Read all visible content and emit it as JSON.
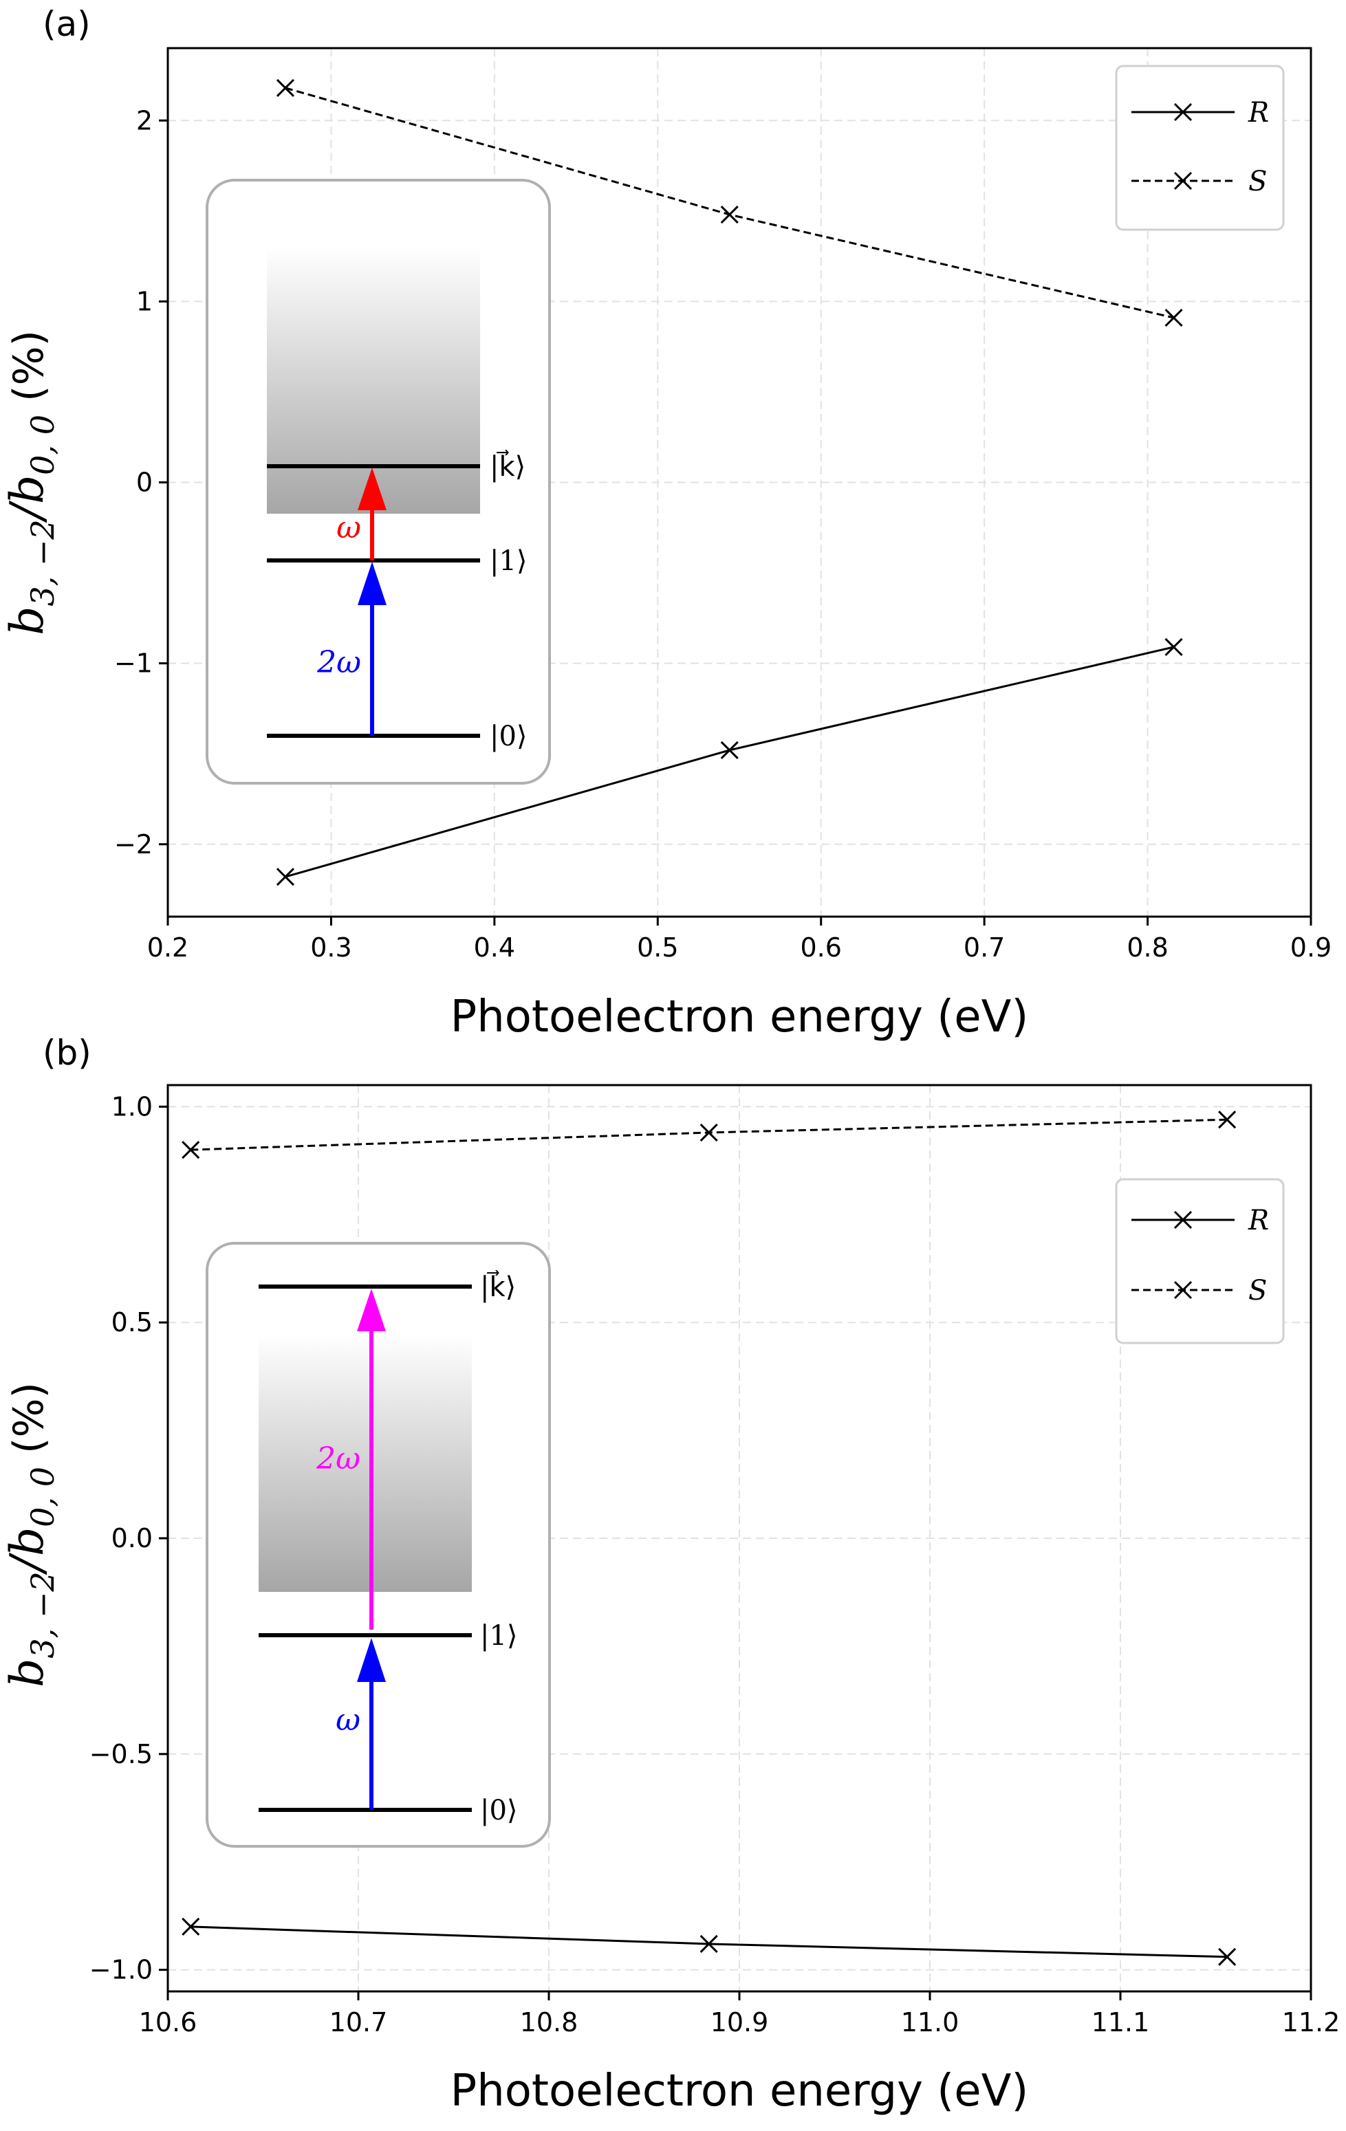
{
  "chart_data": [
    {
      "type": "line",
      "panel_label": "(a)",
      "x": [
        0.272,
        0.544,
        0.816
      ],
      "series": [
        {
          "name": "R",
          "values": [
            -2.18,
            -1.48,
            -0.91
          ],
          "line_style": "solid",
          "marker": "x",
          "color": "#000000"
        },
        {
          "name": "S",
          "values": [
            2.18,
            1.48,
            0.91
          ],
          "line_style": "dashed",
          "marker": "x",
          "color": "#000000"
        }
      ],
      "xlim": [
        0.2,
        0.9
      ],
      "ylim": [
        -2.4,
        2.4
      ],
      "xticks": [
        0.2,
        0.3,
        0.4,
        0.5,
        0.6,
        0.7,
        0.8,
        0.9
      ],
      "xtick_labels": [
        "0.2",
        "0.3",
        "0.4",
        "0.5",
        "0.6",
        "0.7",
        "0.8",
        "0.9"
      ],
      "yticks": [
        -2,
        -1,
        0,
        1,
        2
      ],
      "ytick_labels": [
        "−2",
        "−1",
        "0",
        "1",
        "2"
      ],
      "xlabel": "Photoelectron energy (eV)",
      "ylabel": {
        "main": "b",
        "sub": "3, −2",
        "slash": "/",
        "main2": "b",
        "sub2": "0, 0",
        "unit": " (%)"
      },
      "grid": true,
      "legend_position": "top-right",
      "inset": {
        "levels": [
          "|k⃗⟩",
          "|1⟩",
          "|0⟩"
        ],
        "arrows": [
          {
            "label": "2ω",
            "color": "#0000ff"
          },
          {
            "label": "ω",
            "color": "#ff0000"
          }
        ]
      }
    },
    {
      "type": "line",
      "panel_label": "(b)",
      "x": [
        10.612,
        10.884,
        11.156
      ],
      "series": [
        {
          "name": "R",
          "values": [
            -0.9,
            -0.94,
            -0.97
          ],
          "line_style": "solid",
          "marker": "x",
          "color": "#000000"
        },
        {
          "name": "S",
          "values": [
            0.9,
            0.94,
            0.97
          ],
          "line_style": "dashed",
          "marker": "x",
          "color": "#000000"
        }
      ],
      "xlim": [
        10.6,
        11.2
      ],
      "ylim": [
        -1.05,
        1.05
      ],
      "xticks": [
        10.6,
        10.7,
        10.8,
        10.9,
        11.0,
        11.1,
        11.2
      ],
      "xtick_labels": [
        "10.6",
        "10.7",
        "10.8",
        "10.9",
        "11.0",
        "11.1",
        "11.2"
      ],
      "yticks": [
        -1.0,
        -0.5,
        0.0,
        0.5,
        1.0
      ],
      "ytick_labels": [
        "−1.0",
        "−0.5",
        "0.0",
        "0.5",
        "1.0"
      ],
      "xlabel": "Photoelectron energy (eV)",
      "ylabel": {
        "main": "b",
        "sub": "3, −2",
        "slash": "/",
        "main2": "b",
        "sub2": "0, 0",
        "unit": " (%)"
      },
      "grid": true,
      "legend_position": "upper-right",
      "inset": {
        "levels": [
          "|k⃗⟩",
          "|1⟩",
          "|0⟩"
        ],
        "arrows": [
          {
            "label": "ω",
            "color": "#0000ff"
          },
          {
            "label": "2ω",
            "color": "#ff00ff"
          }
        ]
      }
    }
  ]
}
